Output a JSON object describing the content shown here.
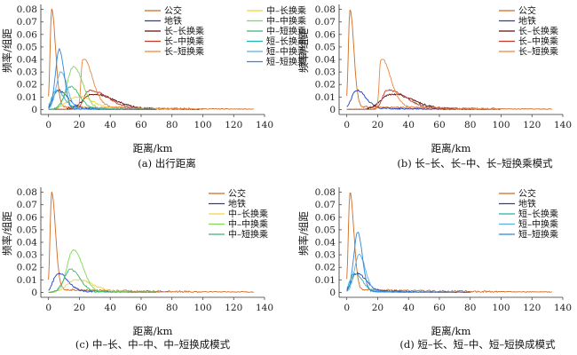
{
  "chart_data": [
    {
      "type": "line",
      "caption": "(a) 出行距离",
      "xlabel": "距离/km",
      "ylabel": "频率/组距",
      "xlim": [
        -5,
        140
      ],
      "ylim": [
        -0.004,
        0.084
      ],
      "xticks": [
        0,
        20,
        40,
        60,
        80,
        100,
        120,
        140
      ],
      "yticks": [
        0,
        0.01,
        0.02,
        0.03,
        0.04,
        0.05,
        0.06,
        0.07,
        0.08
      ],
      "ytick_labels": [
        "0",
        "0.01",
        "0.02",
        "0.03",
        "0.04",
        "0.05",
        "0.06",
        "0.07",
        "0.08"
      ],
      "legend_columns": 2,
      "series": [
        {
          "name": "公交",
          "color": "#d2691e",
          "peak_x": 2,
          "peak_y": 0.08,
          "sigma_l": 1.0,
          "sigma_r": 2.5,
          "tail": 0.0025,
          "tail_scale": 60,
          "x_max": 133
        },
        {
          "name": "地铁",
          "color": "#1f3fbf",
          "peak_x": 6,
          "peak_y": 0.015,
          "sigma_l": 3.0,
          "sigma_r": 6.0,
          "tail": 0.0015,
          "tail_scale": 30,
          "x_max": 80
        },
        {
          "name": "长–长换乘",
          "color": "#5a1010",
          "peak_x": 28,
          "peak_y": 0.012,
          "sigma_l": 6.0,
          "sigma_r": 14.0,
          "tail": 0.001,
          "tail_scale": 40,
          "x_max": 100
        },
        {
          "name": "长–中换乘",
          "color": "#c0392b",
          "peak_x": 26,
          "peak_y": 0.015,
          "sigma_l": 3.0,
          "sigma_r": 12.0,
          "tail": 0.001,
          "tail_scale": 30,
          "x_max": 95
        },
        {
          "name": "长–短换乘",
          "color": "#f0843a",
          "peak_x": 22,
          "peak_y": 0.04,
          "sigma_l": 1.0,
          "sigma_r": 6.0,
          "tail": 0.004,
          "tail_scale": 30,
          "x_max": 100
        },
        {
          "name": "中–长换乘",
          "color": "#f5d442",
          "peak_x": 18,
          "peak_y": 0.01,
          "sigma_l": 6.0,
          "sigma_r": 10.0,
          "tail": 0.001,
          "tail_scale": 25,
          "x_max": 80
        },
        {
          "name": "中–中换乘",
          "color": "#7ed957",
          "peak_x": 16,
          "peak_y": 0.034,
          "sigma_l": 4.0,
          "sigma_r": 6.0,
          "tail": 0.001,
          "tail_scale": 25,
          "x_max": 70
        },
        {
          "name": "中–短换乘",
          "color": "#3cb371",
          "peak_x": 14,
          "peak_y": 0.018,
          "sigma_l": 4.0,
          "sigma_r": 6.0,
          "tail": 0.001,
          "tail_scale": 20,
          "x_max": 70
        },
        {
          "name": "短–长换乘",
          "color": "#20b2aa",
          "peak_x": 5,
          "peak_y": 0.015,
          "sigma_l": 3.0,
          "sigma_r": 5.0,
          "tail": 0.001,
          "tail_scale": 20,
          "x_max": 70
        },
        {
          "name": "短–中换乘",
          "color": "#5dade2",
          "peak_x": 8,
          "peak_y": 0.03,
          "sigma_l": 3.0,
          "sigma_r": 4.0,
          "tail": 0.001,
          "tail_scale": 15,
          "x_max": 70
        },
        {
          "name": "短–短换乘",
          "color": "#2e86de",
          "peak_x": 7,
          "peak_y": 0.048,
          "sigma_l": 2.5,
          "sigma_r": 3.0,
          "tail": 0.001,
          "tail_scale": 15,
          "x_max": 70
        }
      ]
    },
    {
      "type": "line",
      "caption": "(b) 长–长、长–中、长–短换乘模式",
      "xlabel": "距离/km",
      "ylabel": "频率/组距",
      "xlim": [
        -5,
        140
      ],
      "ylim": [
        -0.004,
        0.084
      ],
      "xticks": [
        0,
        20,
        40,
        60,
        80,
        100,
        120,
        140
      ],
      "yticks": [
        0,
        0.01,
        0.02,
        0.03,
        0.04,
        0.05,
        0.06,
        0.07,
        0.08
      ],
      "ytick_labels": [
        "0",
        "0.01",
        "0.02",
        "0.03",
        "0.04",
        "0.05",
        "0.06",
        "0.07",
        "0.08"
      ],
      "legend_columns": 1,
      "series": [
        {
          "name": "公交",
          "color": "#d2691e",
          "peak_x": 2,
          "peak_y": 0.08,
          "sigma_l": 1.0,
          "sigma_r": 2.5,
          "tail": 0.0025,
          "tail_scale": 60,
          "x_max": 133
        },
        {
          "name": "地铁",
          "color": "#1f3fbf",
          "peak_x": 6,
          "peak_y": 0.015,
          "sigma_l": 3.0,
          "sigma_r": 6.0,
          "tail": 0.0015,
          "tail_scale": 30,
          "x_max": 80
        },
        {
          "name": "长–长换乘",
          "color": "#5a1010",
          "peak_x": 28,
          "peak_y": 0.012,
          "sigma_l": 6.0,
          "sigma_r": 14.0,
          "tail": 0.001,
          "tail_scale": 40,
          "x_max": 100
        },
        {
          "name": "长–中换乘",
          "color": "#c0392b",
          "peak_x": 26,
          "peak_y": 0.015,
          "sigma_l": 3.0,
          "sigma_r": 12.0,
          "tail": 0.001,
          "tail_scale": 30,
          "x_max": 95
        },
        {
          "name": "长–短换乘",
          "color": "#f0843a",
          "peak_x": 22,
          "peak_y": 0.04,
          "sigma_l": 1.0,
          "sigma_r": 6.0,
          "tail": 0.004,
          "tail_scale": 30,
          "x_max": 100
        }
      ]
    },
    {
      "type": "line",
      "caption": "(c) 中–长、中–中、中–短换成模式",
      "xlabel": "距离/km",
      "ylabel": "频率/组距",
      "xlim": [
        -5,
        140
      ],
      "ylim": [
        -0.004,
        0.084
      ],
      "xticks": [
        0,
        20,
        40,
        60,
        80,
        100,
        120,
        140
      ],
      "yticks": [
        0,
        0.01,
        0.02,
        0.03,
        0.04,
        0.05,
        0.06,
        0.07,
        0.08
      ],
      "ytick_labels": [
        "0",
        "0.01",
        "0.02",
        "0.03",
        "0.04",
        "0.05",
        "0.06",
        "0.07",
        "0.08"
      ],
      "legend_columns": 1,
      "series": [
        {
          "name": "公交",
          "color": "#d2691e",
          "peak_x": 2,
          "peak_y": 0.08,
          "sigma_l": 1.0,
          "sigma_r": 2.5,
          "tail": 0.0025,
          "tail_scale": 60,
          "x_max": 133
        },
        {
          "name": "地铁",
          "color": "#1f3fbf",
          "peak_x": 6,
          "peak_y": 0.015,
          "sigma_l": 3.0,
          "sigma_r": 6.0,
          "tail": 0.0015,
          "tail_scale": 30,
          "x_max": 80
        },
        {
          "name": "中–长换乘",
          "color": "#f5d442",
          "peak_x": 18,
          "peak_y": 0.01,
          "sigma_l": 6.0,
          "sigma_r": 10.0,
          "tail": 0.001,
          "tail_scale": 25,
          "x_max": 80
        },
        {
          "name": "中–中换乘",
          "color": "#7ed957",
          "peak_x": 16,
          "peak_y": 0.034,
          "sigma_l": 4.0,
          "sigma_r": 6.0,
          "tail": 0.001,
          "tail_scale": 25,
          "x_max": 70
        },
        {
          "name": "中–短换乘",
          "color": "#3cb371",
          "peak_x": 14,
          "peak_y": 0.018,
          "sigma_l": 4.0,
          "sigma_r": 6.0,
          "tail": 0.001,
          "tail_scale": 20,
          "x_max": 70
        }
      ]
    },
    {
      "type": "line",
      "caption": "(d) 短–长、短–中、短–短换成模式",
      "xlabel": "距离/km",
      "ylabel": "频率/组距",
      "xlim": [
        -5,
        140
      ],
      "ylim": [
        -0.004,
        0.084
      ],
      "xticks": [
        0,
        20,
        40,
        60,
        80,
        100,
        120,
        140
      ],
      "yticks": [
        0,
        0.01,
        0.02,
        0.03,
        0.04,
        0.05,
        0.06,
        0.07,
        0.08
      ],
      "ytick_labels": [
        "0",
        "0.01",
        "0.02",
        "0.03",
        "0.04",
        "0.05",
        "0.06",
        "0.07",
        "0.08"
      ],
      "legend_columns": 1,
      "series": [
        {
          "name": "公交",
          "color": "#d2691e",
          "peak_x": 2,
          "peak_y": 0.08,
          "sigma_l": 1.0,
          "sigma_r": 2.5,
          "tail": 0.0025,
          "tail_scale": 60,
          "x_max": 133
        },
        {
          "name": "地铁",
          "color": "#1f3fbf",
          "peak_x": 6,
          "peak_y": 0.015,
          "sigma_l": 3.0,
          "sigma_r": 6.0,
          "tail": 0.0015,
          "tail_scale": 30,
          "x_max": 80
        },
        {
          "name": "短–长换乘",
          "color": "#20b2aa",
          "peak_x": 5,
          "peak_y": 0.015,
          "sigma_l": 3.0,
          "sigma_r": 5.0,
          "tail": 0.001,
          "tail_scale": 20,
          "x_max": 70
        },
        {
          "name": "短–中换乘",
          "color": "#5dade2",
          "peak_x": 8,
          "peak_y": 0.03,
          "sigma_l": 3.0,
          "sigma_r": 4.0,
          "tail": 0.001,
          "tail_scale": 15,
          "x_max": 70
        },
        {
          "name": "短–短换乘",
          "color": "#2e86de",
          "peak_x": 7,
          "peak_y": 0.048,
          "sigma_l": 2.5,
          "sigma_r": 3.0,
          "tail": 0.001,
          "tail_scale": 15,
          "x_max": 70
        }
      ]
    }
  ]
}
